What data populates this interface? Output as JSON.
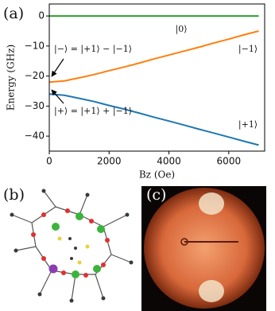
{
  "chart_data": {
    "type": "line",
    "y_label": "Energy (GHz)",
    "x_label": "Bz (Oe)",
    "annotations": [
      "(a)",
      "|0⟩",
      "|−1⟩",
      "|+1⟩",
      "|−⟩ = |+1⟩ − |−1⟩",
      "|+⟩ = |+1⟩ + |−1⟩"
    ],
    "x": [
      0,
      500,
      1000,
      1500,
      2000,
      2500,
      3000,
      3500,
      4000,
      4500,
      5000,
      5500,
      6000,
      6500,
      7000
    ],
    "series": [
      {
        "color": "#2ca02c",
        "values": [
          0,
          0,
          0,
          0,
          0,
          0,
          0,
          0,
          0,
          0,
          0,
          0,
          0,
          0,
          0
        ]
      },
      {
        "color": "#ff7f0e",
        "values": [
          -22,
          -21.6,
          -20.6,
          -19.5,
          -18.2,
          -17.0,
          -15.7,
          -14.3,
          -13.0,
          -11.7,
          -10.4,
          -9.0,
          -7.7,
          -6.3,
          -5.0
        ]
      },
      {
        "color": "#1f77b4",
        "values": [
          -26,
          -26.4,
          -27.4,
          -28.5,
          -29.8,
          -31.0,
          -32.3,
          -33.7,
          -35.0,
          -36.3,
          -37.7,
          -39.0,
          -40.3,
          -41.7,
          -43.0
        ]
      }
    ],
    "xlim": [
      0,
      7200
    ],
    "ylim": [
      -45,
      4
    ],
    "xticks": [
      0,
      2000,
      4000,
      6000
    ],
    "yticks": [
      0,
      {
        "value": -10,
        "label": "−10"
      },
      {
        "value": -20,
        "label": "−20"
      },
      {
        "value": -30,
        "label": "−30"
      },
      {
        "value": -40,
        "label": "−40"
      }
    ]
  },
  "panels": {
    "b": {
      "label": "(b)"
    },
    "c": {
      "label": "(c)"
    }
  }
}
